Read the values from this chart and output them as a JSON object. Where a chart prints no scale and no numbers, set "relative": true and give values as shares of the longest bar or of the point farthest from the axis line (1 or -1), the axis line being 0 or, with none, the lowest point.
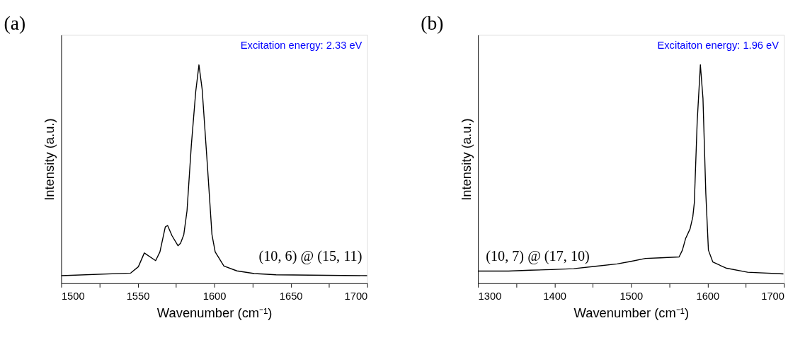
{
  "chart_data": [
    {
      "type": "line",
      "title": "(a)",
      "xlabel": "Wavenumber (cm⁻¹)",
      "ylabel": "Intensity (a.u.)",
      "relative": true,
      "tick_labels": "x",
      "grid": false,
      "annotations": [
        "Excitation energy: 2.33 eV",
        "(10, 6) @ (15, 11)"
      ],
      "xlim": [
        1500,
        1700
      ],
      "xticks": [
        1500,
        {
          "value": 1525,
          "label": null
        },
        1550,
        {
          "value": 1575,
          "label": null
        },
        1600,
        {
          "value": 1625,
          "label": null
        },
        1650,
        {
          "value": 1675,
          "label": null
        },
        1700
      ],
      "series": [
        {
          "color": "#000000",
          "x": [
            1500,
            1545.4,
            1550.4,
            1554.3,
            1561.7,
            1564.5,
            1568,
            1569.5,
            1572.4,
            1576.3,
            1578,
            1580.1,
            1582.2,
            1585,
            1587.9,
            1590,
            1592.1,
            1595.6,
            1598.5,
            1600.6,
            1606.3,
            1614.8,
            1626.1,
            1640.3,
            1699.9
          ],
          "values": [
            0.035,
            0.047,
            0.076,
            0.139,
            0.104,
            0.144,
            0.258,
            0.265,
            0.218,
            0.172,
            0.184,
            0.223,
            0.332,
            0.63,
            0.878,
            1.0,
            0.888,
            0.531,
            0.223,
            0.144,
            0.079,
            0.057,
            0.045,
            0.039,
            0.035
          ]
        }
      ]
    },
    {
      "type": "line",
      "title": "(b)",
      "xlabel": "Wavenumber (cm⁻¹)",
      "ylabel": "Intensity (a.u.)",
      "relative": true,
      "tick_labels": "x",
      "grid": false,
      "annotations": [
        "Excitaiton energy: 1.96 eV",
        "(10, 7) @ (17, 10)"
      ],
      "xlim": [
        1300,
        1700
      ],
      "xticks": [
        1300,
        {
          "value": 1350,
          "label": null
        },
        1400,
        {
          "value": 1450,
          "label": null
        },
        1500,
        {
          "value": 1550,
          "label": null
        },
        1600,
        {
          "value": 1650,
          "label": null
        },
        1700
      ],
      "series": [
        {
          "color": "#000000",
          "x": [
            1300,
            1339.8,
            1368.2,
            1396.6,
            1425,
            1453.4,
            1481.8,
            1498.9,
            1518.8,
            1538.7,
            1562.8,
            1567.1,
            1571.4,
            1577.1,
            1580.7,
            1582.7,
            1586.4,
            1590.6,
            1594,
            1597.7,
            1601.1,
            1606.8,
            1623.9,
            1652.3,
            1699.1
          ],
          "values": [
            0.056,
            0.056,
            0.06,
            0.063,
            0.067,
            0.078,
            0.089,
            0.1,
            0.114,
            0.117,
            0.121,
            0.152,
            0.206,
            0.249,
            0.304,
            0.369,
            0.737,
            1.0,
            0.846,
            0.412,
            0.152,
            0.098,
            0.07,
            0.051,
            0.043
          ]
        }
      ]
    }
  ]
}
